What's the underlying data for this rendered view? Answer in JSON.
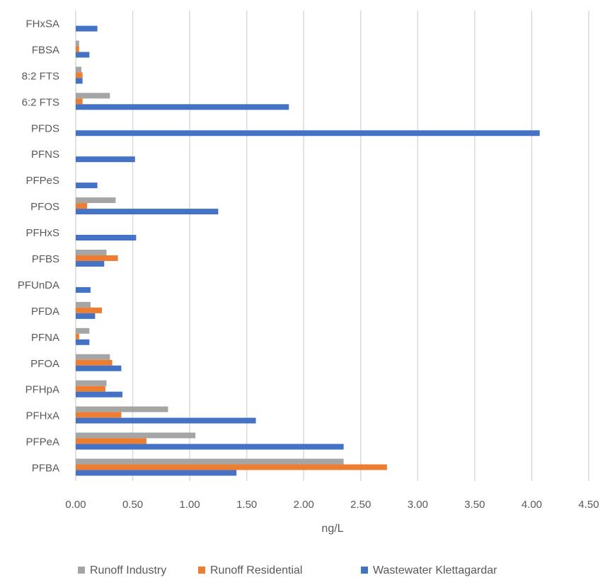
{
  "chart_data": {
    "type": "bar",
    "orientation": "horizontal",
    "categories": [
      "PFBA",
      "PFPeA",
      "PFHxA",
      "PFHpA",
      "PFOA",
      "PFNA",
      "PFDA",
      "PFUnDA",
      "PFBS",
      "PFHxS",
      "PFOS",
      "PFPeS",
      "PFNS",
      "PFDS",
      "6:2 FTS",
      "8:2 FTS",
      "FBSA",
      "FHxSA"
    ],
    "series": [
      {
        "name": "Runoff Industry",
        "color": "#a5a5a5",
        "values": [
          2.35,
          1.05,
          0.81,
          0.27,
          0.3,
          0.12,
          0.13,
          0,
          0.27,
          0,
          0.35,
          0,
          0,
          0,
          0.3,
          0.05,
          0.03,
          0
        ]
      },
      {
        "name": "Runoff Residential",
        "color": "#ed7d31",
        "values": [
          2.73,
          0.62,
          0.4,
          0.26,
          0.32,
          0.03,
          0.23,
          0,
          0.37,
          0,
          0.1,
          0,
          0,
          0,
          0.06,
          0.06,
          0.03,
          0
        ]
      },
      {
        "name": "Wastewater Klettagardar",
        "color": "#4472c4",
        "values": [
          1.41,
          2.35,
          1.58,
          0.41,
          0.4,
          0.12,
          0.17,
          0.13,
          0.25,
          0.53,
          1.25,
          0.19,
          0.52,
          4.07,
          1.87,
          0.06,
          0.12,
          0.19
        ]
      }
    ],
    "xlim": [
      0,
      4.5
    ],
    "xticks": [
      "0.00",
      "0.50",
      "1.00",
      "1.50",
      "2.00",
      "2.50",
      "3.00",
      "3.50",
      "4.00",
      "4.50"
    ],
    "xlabel": "ng/L",
    "ylabel": "",
    "title": "",
    "grid": "vertical",
    "legend_position": "bottom"
  }
}
